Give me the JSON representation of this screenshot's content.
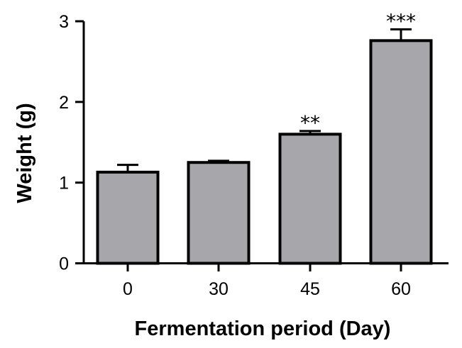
{
  "chart_data": {
    "type": "bar",
    "categories": [
      "0",
      "30",
      "45",
      "60"
    ],
    "values": [
      1.13,
      1.25,
      1.6,
      2.76
    ],
    "errors": [
      0.09,
      0.02,
      0.04,
      0.14
    ],
    "significance": [
      "",
      "",
      "**",
      "***"
    ],
    "xlabel": "Fermentation period (Day)",
    "ylabel": "Weight (g)",
    "ylim": [
      0,
      3
    ],
    "yticks": [
      "0",
      "1",
      "2",
      "3"
    ],
    "grid": false,
    "bar_color": "#a7a6ab",
    "edge_color": "#000000"
  }
}
